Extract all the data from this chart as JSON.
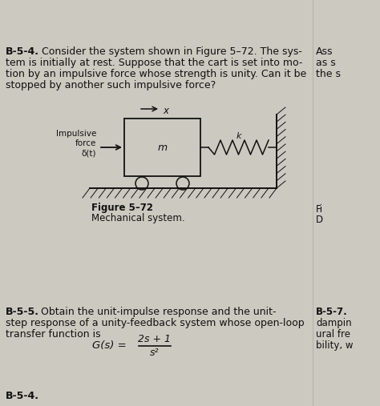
{
  "bg_color": "#ccc9c0",
  "title_bold": "B-5-4.",
  "p1_line1": "Consider the system shown in Figure 5–72. The sys-",
  "p1_line2": "tem is initially at rest. Suppose that the cart is set into mo-",
  "p1_line3": "tion by an impulsive force whose strength is unity. Can it be",
  "p1_line4": "stopped by another such impulsive force?",
  "rc1": "Ass",
  "rc2": "as s",
  "rc3": "the s",
  "fig_label": "Figure 5–72",
  "fig_caption": "Mechanical system.",
  "p2_bold": "B-5-5.",
  "p2_line1": " Obtain the unit-impulse response and the unit-",
  "p2_line2": "step response of a unity-feedback system whose open-loop",
  "p2_line3": "transfer function is",
  "rc4": "Fi",
  "rc5": "D",
  "rc6": "B-5-7.",
  "rc7": "dampin",
  "rc8": "ural fre",
  "rc9": "bility, w",
  "formula_gs": "G(s) =",
  "formula_num": "2s + 1",
  "formula_den": "s²",
  "bottom_label": "B-5-4.",
  "imp_line1": "Impulsive",
  "imp_line2": "force",
  "imp_line3": "δ(t)",
  "spring_k": "k",
  "mass_m": "m",
  "x_arrow": "x"
}
